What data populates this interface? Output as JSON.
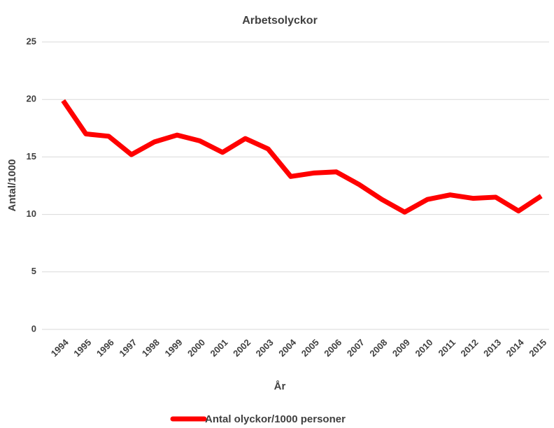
{
  "chart_data": {
    "type": "line",
    "title": "Arbetsolyckor",
    "x_label": "År",
    "y_label": "Antal/1000",
    "categories": [
      "1994",
      "1995",
      "1996",
      "1997",
      "1998",
      "1999",
      "2000",
      "2001",
      "2002",
      "2003",
      "2004",
      "2005",
      "2006",
      "2007",
      "2008",
      "2009",
      "2010",
      "2011",
      "2012",
      "2013",
      "2014",
      "2015"
    ],
    "series": [
      {
        "name": "Antal olyckor/1000 personer",
        "color": "#ff0000",
        "values": [
          19.9,
          17.0,
          16.8,
          15.2,
          16.3,
          16.9,
          16.4,
          15.4,
          16.6,
          15.7,
          13.3,
          13.6,
          13.7,
          12.6,
          11.3,
          10.2,
          11.3,
          11.7,
          11.4,
          11.5,
          10.3,
          11.6
        ]
      }
    ],
    "ylim": [
      0,
      25
    ],
    "yticks": [
      0,
      5,
      10,
      15,
      20,
      25
    ],
    "grid": true,
    "legend": "bottom"
  }
}
